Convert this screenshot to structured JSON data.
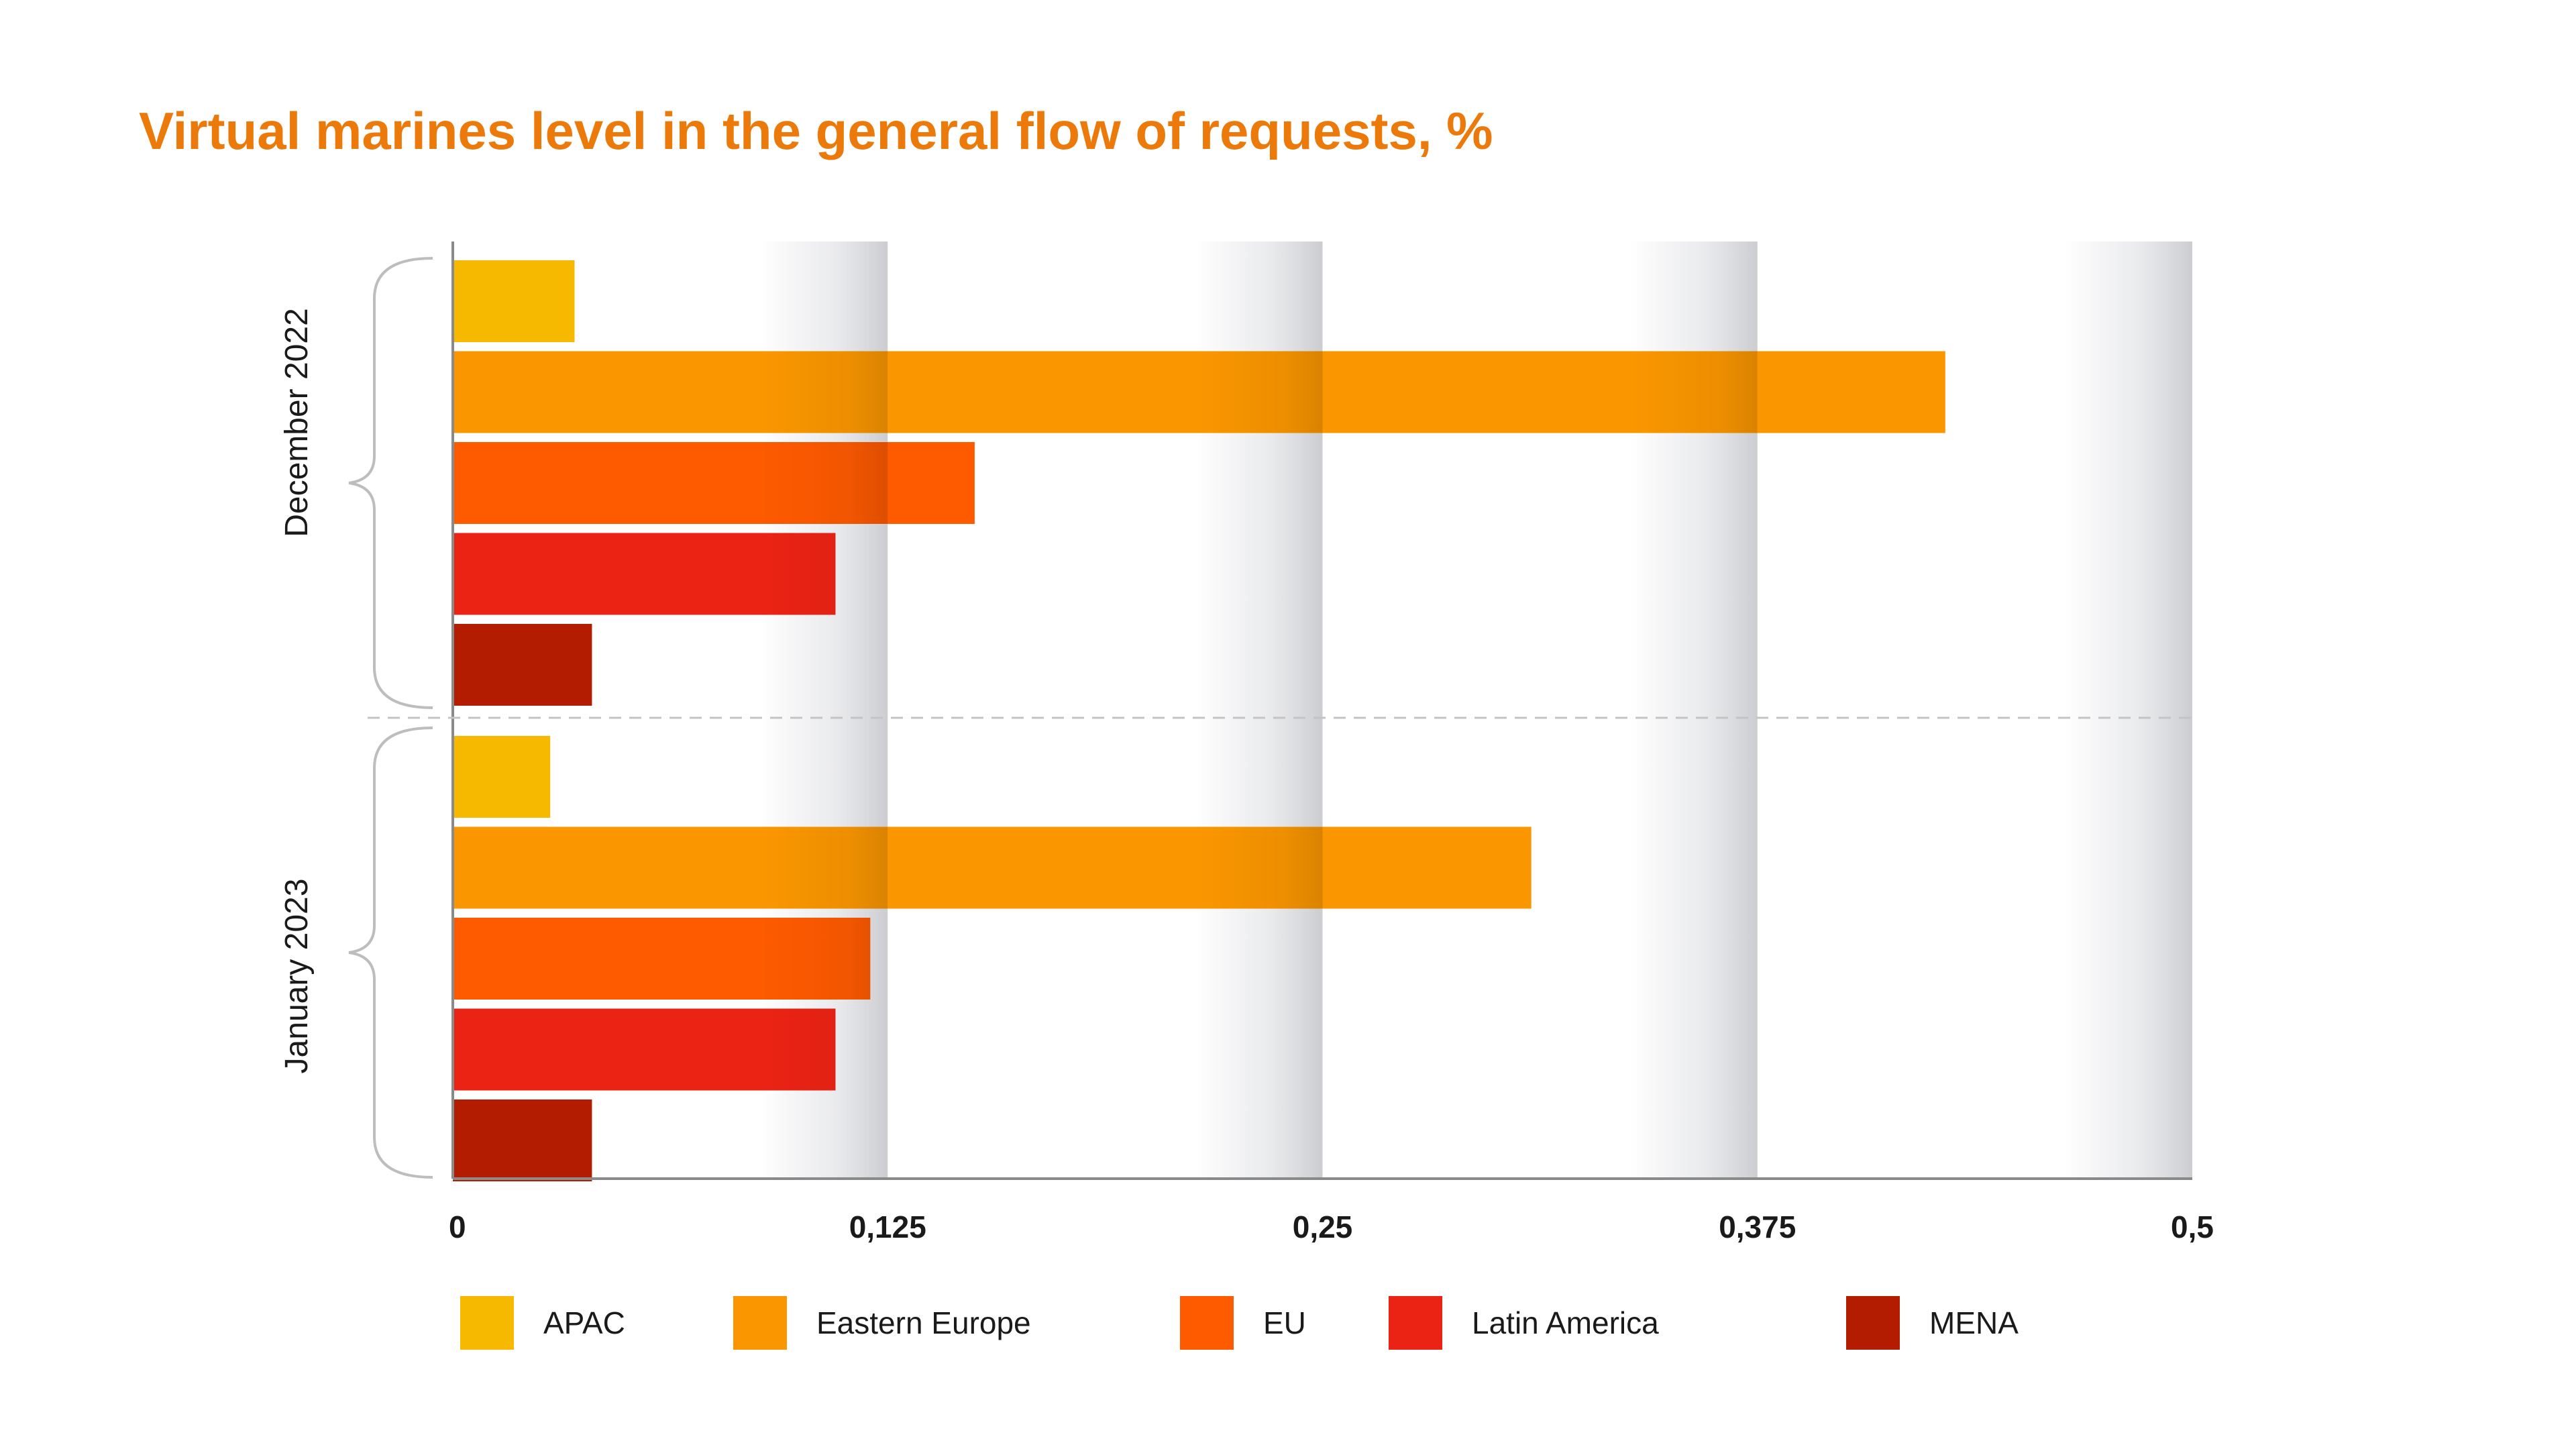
{
  "chart_data": {
    "type": "bar",
    "orientation": "horizontal",
    "title": "Virtual marines level in the general flow of requests, %",
    "groups": [
      "December 2022",
      "January 2023"
    ],
    "xlim": [
      0,
      0.5
    ],
    "xticks": [
      "0",
      "0,125",
      "0,25",
      "0,375",
      "0,5"
    ],
    "xtick_values": [
      0,
      0.125,
      0.25,
      0.375,
      0.5
    ],
    "legend_position": "bottom",
    "series": [
      {
        "name": "APAC",
        "color": "#f7b900",
        "values": [
          0.035,
          0.028
        ]
      },
      {
        "name": "Eastern Europe",
        "color": "#fa9600",
        "values": [
          0.429,
          0.31
        ]
      },
      {
        "name": "EU",
        "color": "#fe5a00",
        "values": [
          0.15,
          0.12
        ]
      },
      {
        "name": "Latin America",
        "color": "#eb2314",
        "values": [
          0.11,
          0.11
        ]
      },
      {
        "name": "MENA",
        "color": "#b41c00",
        "values": [
          0.04,
          0.04
        ]
      }
    ]
  }
}
